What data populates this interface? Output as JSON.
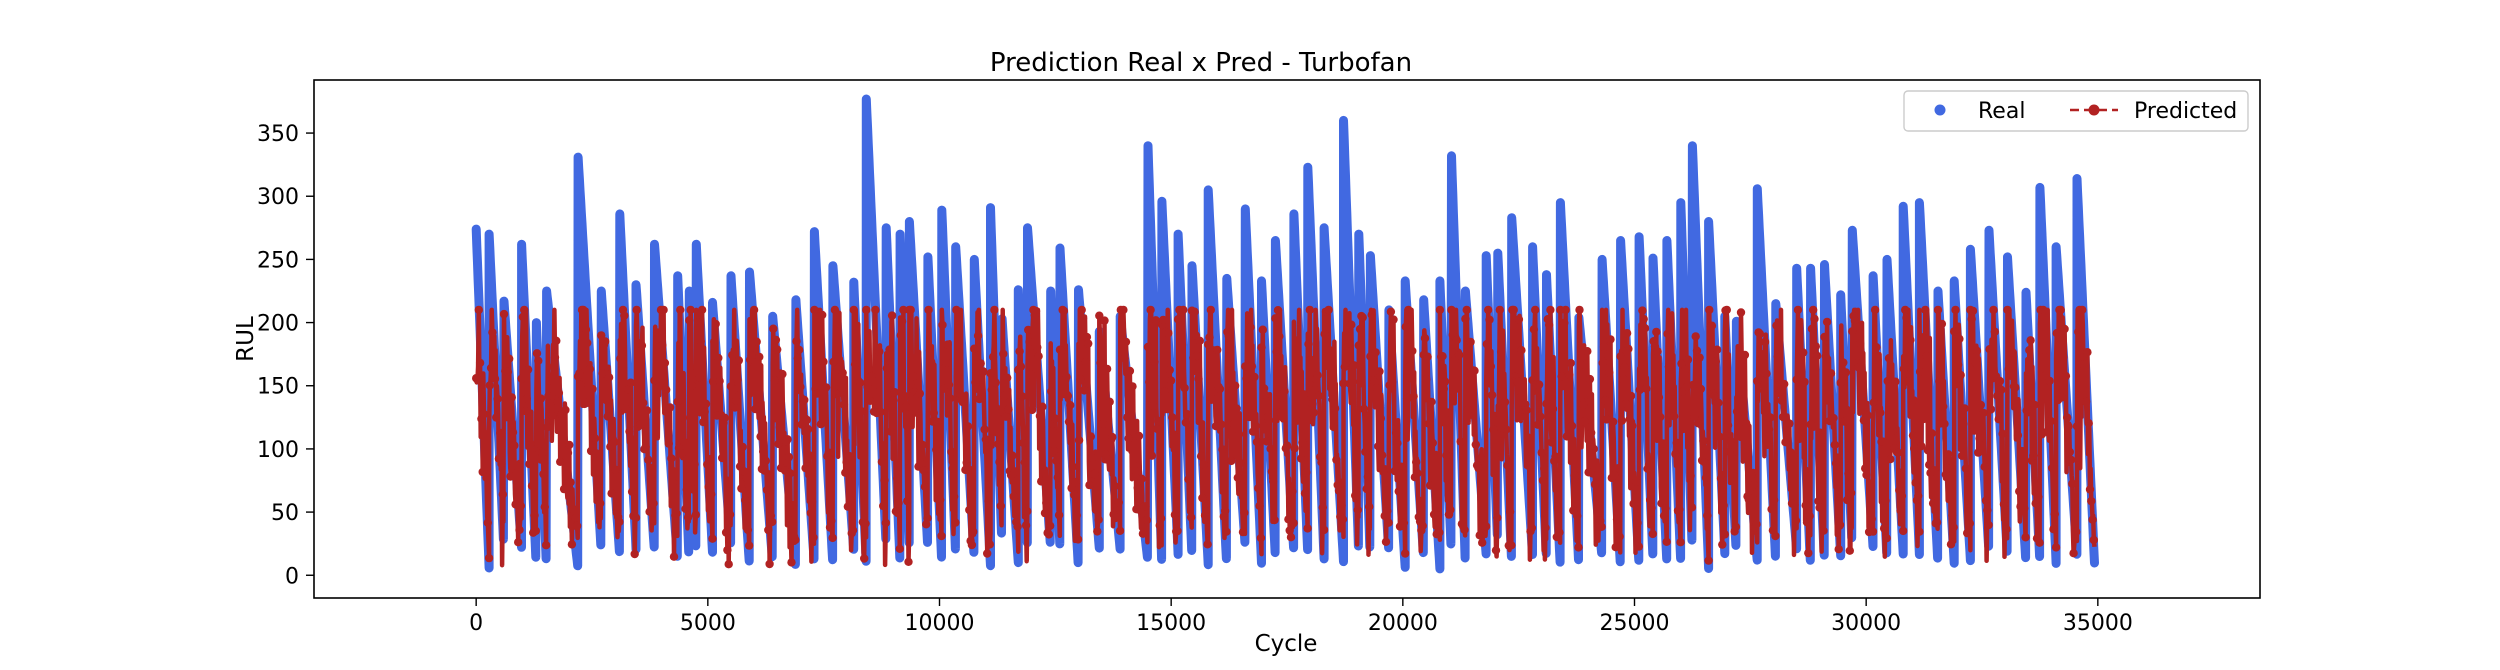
{
  "chart_data": {
    "type": "scatter",
    "title": "Prediction Real x Pred - Turbofan",
    "xlabel": "Cycle",
    "ylabel": "RUL",
    "xlim": [
      -3500,
      38500
    ],
    "ylim": [
      -18,
      392
    ],
    "xticks": [
      0,
      5000,
      10000,
      15000,
      20000,
      25000,
      30000,
      35000
    ],
    "xtick_labels": [
      "0",
      "5000",
      "10000",
      "15000",
      "20000",
      "25000",
      "30000",
      "35000"
    ],
    "yticks": [
      0,
      50,
      100,
      150,
      200,
      250,
      300,
      350
    ],
    "ytick_labels": [
      "0",
      "50",
      "100",
      "150",
      "200",
      "250",
      "300",
      "350"
    ],
    "grid": false,
    "legend_position": "top-right",
    "series": [
      {
        "name": "Real",
        "style": "markers",
        "color": "#4169e1",
        "n_points": 34932,
        "x_range": [
          0,
          34932
        ],
        "unit_sawtooth_peaks": [
          [
            0,
            274
          ],
          [
            280,
            270
          ],
          [
            600,
            217
          ],
          [
            980,
            262
          ],
          [
            1300,
            200
          ],
          [
            1520,
            225
          ],
          [
            2200,
            331
          ],
          [
            2700,
            225
          ],
          [
            3100,
            286
          ],
          [
            3450,
            230
          ],
          [
            3850,
            262
          ],
          [
            4350,
            237
          ],
          [
            4600,
            225
          ],
          [
            4750,
            262
          ],
          [
            5100,
            216
          ],
          [
            5500,
            237
          ],
          [
            5900,
            240
          ],
          [
            6400,
            205
          ],
          [
            6900,
            218
          ],
          [
            7300,
            272
          ],
          [
            7700,
            245
          ],
          [
            8150,
            232
          ],
          [
            8420,
            377
          ],
          [
            8850,
            275
          ],
          [
            9150,
            270
          ],
          [
            9350,
            280
          ],
          [
            9750,
            252
          ],
          [
            10050,
            289
          ],
          [
            10350,
            260
          ],
          [
            10750,
            250
          ],
          [
            11100,
            291
          ],
          [
            11350,
            203
          ],
          [
            11700,
            226
          ],
          [
            11900,
            275
          ],
          [
            12400,
            225
          ],
          [
            12600,
            259
          ],
          [
            13000,
            226
          ],
          [
            13450,
            193
          ],
          [
            13900,
            205
          ],
          [
            14500,
            340
          ],
          [
            14800,
            296
          ],
          [
            15150,
            270
          ],
          [
            15450,
            245
          ],
          [
            15800,
            305
          ],
          [
            16200,
            235
          ],
          [
            16600,
            290
          ],
          [
            16950,
            233
          ],
          [
            17250,
            265
          ],
          [
            17650,
            286
          ],
          [
            17950,
            323
          ],
          [
            18300,
            275
          ],
          [
            18720,
            360
          ],
          [
            19050,
            270
          ],
          [
            19300,
            253
          ],
          [
            19700,
            210
          ],
          [
            20050,
            233
          ],
          [
            20450,
            218
          ],
          [
            20800,
            233
          ],
          [
            21050,
            332
          ],
          [
            21350,
            225
          ],
          [
            21800,
            253
          ],
          [
            22050,
            255
          ],
          [
            22350,
            283
          ],
          [
            22800,
            260
          ],
          [
            23100,
            238
          ],
          [
            23400,
            295
          ],
          [
            23800,
            204
          ],
          [
            24300,
            250
          ],
          [
            24700,
            265
          ],
          [
            25100,
            268
          ],
          [
            25400,
            251
          ],
          [
            25700,
            265
          ],
          [
            26000,
            295
          ],
          [
            26250,
            340
          ],
          [
            26600,
            280
          ],
          [
            26950,
            205
          ],
          [
            27200,
            201
          ],
          [
            27650,
            306
          ],
          [
            28050,
            215
          ],
          [
            28500,
            243
          ],
          [
            28800,
            243
          ],
          [
            29100,
            246
          ],
          [
            29450,
            222
          ],
          [
            29700,
            273
          ],
          [
            30150,
            237
          ],
          [
            30450,
            250
          ],
          [
            30800,
            292
          ],
          [
            31150,
            295
          ],
          [
            31550,
            225
          ],
          [
            31900,
            233
          ],
          [
            32250,
            258
          ],
          [
            32650,
            273
          ],
          [
            33050,
            252
          ],
          [
            33450,
            224
          ],
          [
            33750,
            307
          ],
          [
            34100,
            260
          ],
          [
            34550,
            314
          ],
          [
            34932,
            0
          ]
        ]
      },
      {
        "name": "Predicted",
        "style": "dashed line with circle markers",
        "color": "#b22222",
        "n_points": 34932,
        "x_range": [
          0,
          34932
        ],
        "y_range_approx": [
          8,
          210
        ],
        "typical_band": [
          60,
          200
        ]
      }
    ]
  }
}
